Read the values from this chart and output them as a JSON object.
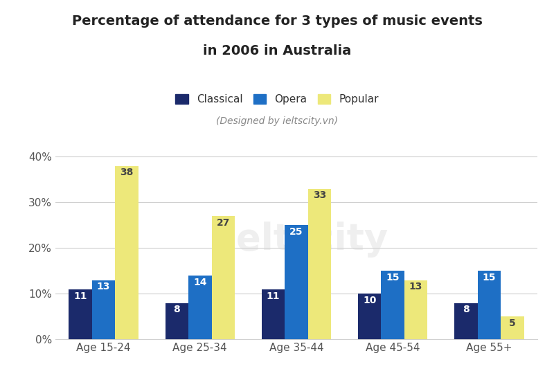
{
  "title_line1": "Percentage of attendance for 3 types of music events",
  "title_line2": "in 2006 in Australia",
  "subtitle": "(Designed by ieltscity.vn)",
  "categories": [
    "Age 15-24",
    "Age 25-34",
    "Age 35-44",
    "Age 45-54",
    "Age 55+"
  ],
  "series": {
    "Classical": [
      11,
      8,
      11,
      10,
      8
    ],
    "Opera": [
      13,
      14,
      25,
      15,
      15
    ],
    "Popular": [
      38,
      27,
      33,
      13,
      5
    ]
  },
  "colors": {
    "Classical": "#1b2a6b",
    "Opera": "#1e6fc5",
    "Popular": "#ede87a"
  },
  "ylim": [
    0,
    42
  ],
  "yticks": [
    0,
    10,
    20,
    30,
    40
  ],
  "ytick_labels": [
    "0%",
    "10%",
    "20%",
    "30%",
    "40%"
  ],
  "bar_width": 0.24,
  "background_color": "#ffffff",
  "title_color": "#222222",
  "grid_color": "#d0d0d0",
  "title_fontsize": 14,
  "subtitle_fontsize": 10,
  "legend_fontsize": 11,
  "tick_fontsize": 11,
  "value_fontsize": 10
}
